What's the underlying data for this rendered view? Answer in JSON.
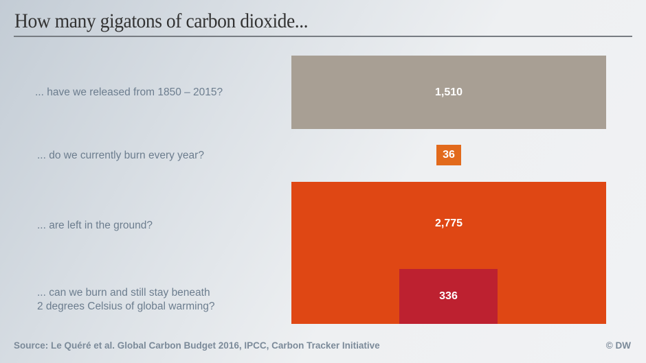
{
  "chart_data": {
    "type": "bar",
    "title": "How many gigatons of carbon dioxide...",
    "categories": [
      "... have we released from 1850 – 2015?",
      "... do we currently burn every year?",
      "... are left in the ground?",
      "... can we burn and still stay beneath\n2 degrees Celsius of global warming?"
    ],
    "values": [
      1510,
      36,
      2775,
      336
    ],
    "value_labels": [
      "1,510",
      "36",
      "2,775",
      "336"
    ],
    "colors": [
      "#a89f94",
      "#e26a1c",
      "#df4714",
      "#bd2130"
    ],
    "source": "Source: Le Quéré et al. Global Carbon Budget 2016, IPCC, Carbon Tracker Initiative",
    "credit": "© DW"
  }
}
